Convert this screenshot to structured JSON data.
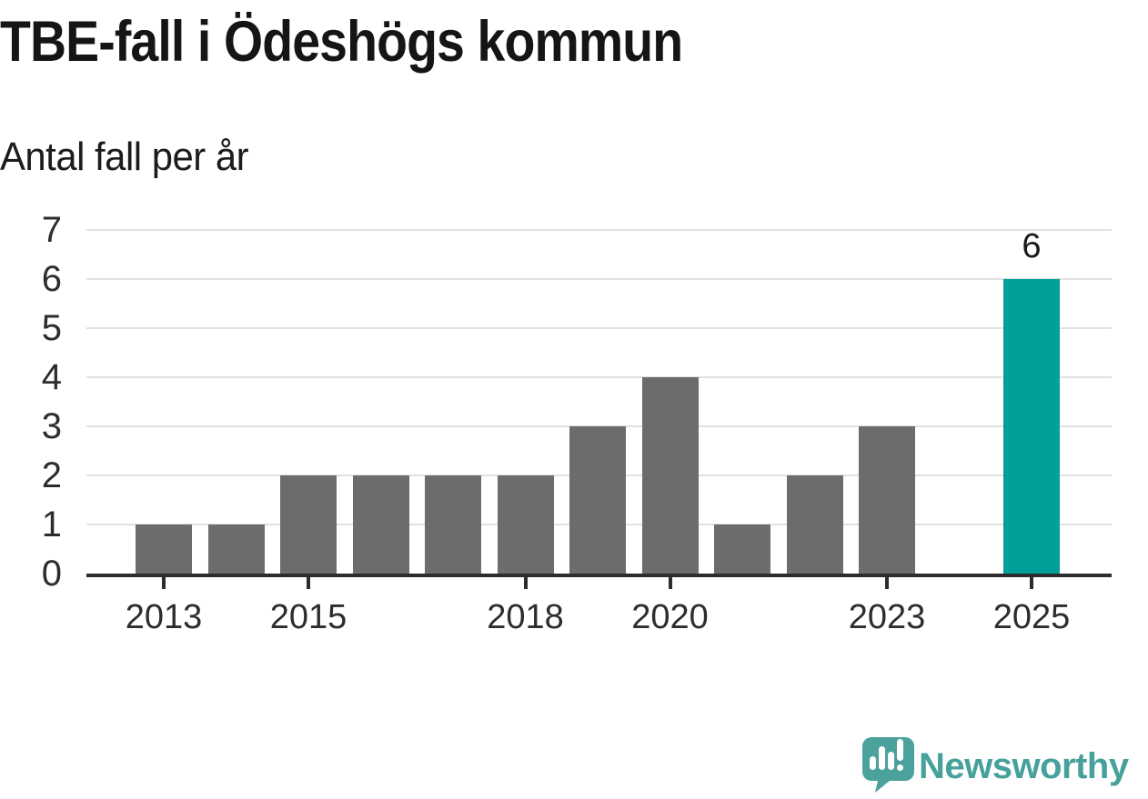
{
  "page": {
    "title": "TBE-fall i Ödeshögs kommun",
    "subtitle": "Antal fall per år"
  },
  "chart_data": {
    "type": "bar",
    "title": "TBE-fall i Ödeshögs kommun",
    "subtitle": "Antal fall per år",
    "xlabel": "",
    "ylabel": "Antal fall per år",
    "categories": [
      "2013",
      "2014",
      "2015",
      "2016",
      "2017",
      "2018",
      "2019",
      "2020",
      "2021",
      "2022",
      "2023",
      "2024",
      "2025"
    ],
    "values": [
      1,
      1,
      2,
      2,
      2,
      2,
      3,
      4,
      1,
      2,
      3,
      0,
      6
    ],
    "ylim": [
      0,
      7
    ],
    "yticks": [
      0,
      1,
      2,
      3,
      4,
      5,
      6,
      7
    ],
    "xtick_labels": [
      "2013",
      "2015",
      "2018",
      "2020",
      "2023",
      "2025"
    ],
    "grid": "horizontal",
    "legend": "none",
    "highlighted_category": "2025",
    "highlighted_value_label": "6",
    "colors": {
      "bar": "#6e6b6e",
      "highlight": "#00a099",
      "axis": "#2e2b2e",
      "gridline": "#e1e1e1",
      "label_text": "#2d2d2d"
    }
  },
  "footer": {
    "brand": "Newsworthy",
    "brand_color": "#47a19b",
    "logo_icon": "newsworthy-speech-bubble-bar-chart-icon"
  }
}
